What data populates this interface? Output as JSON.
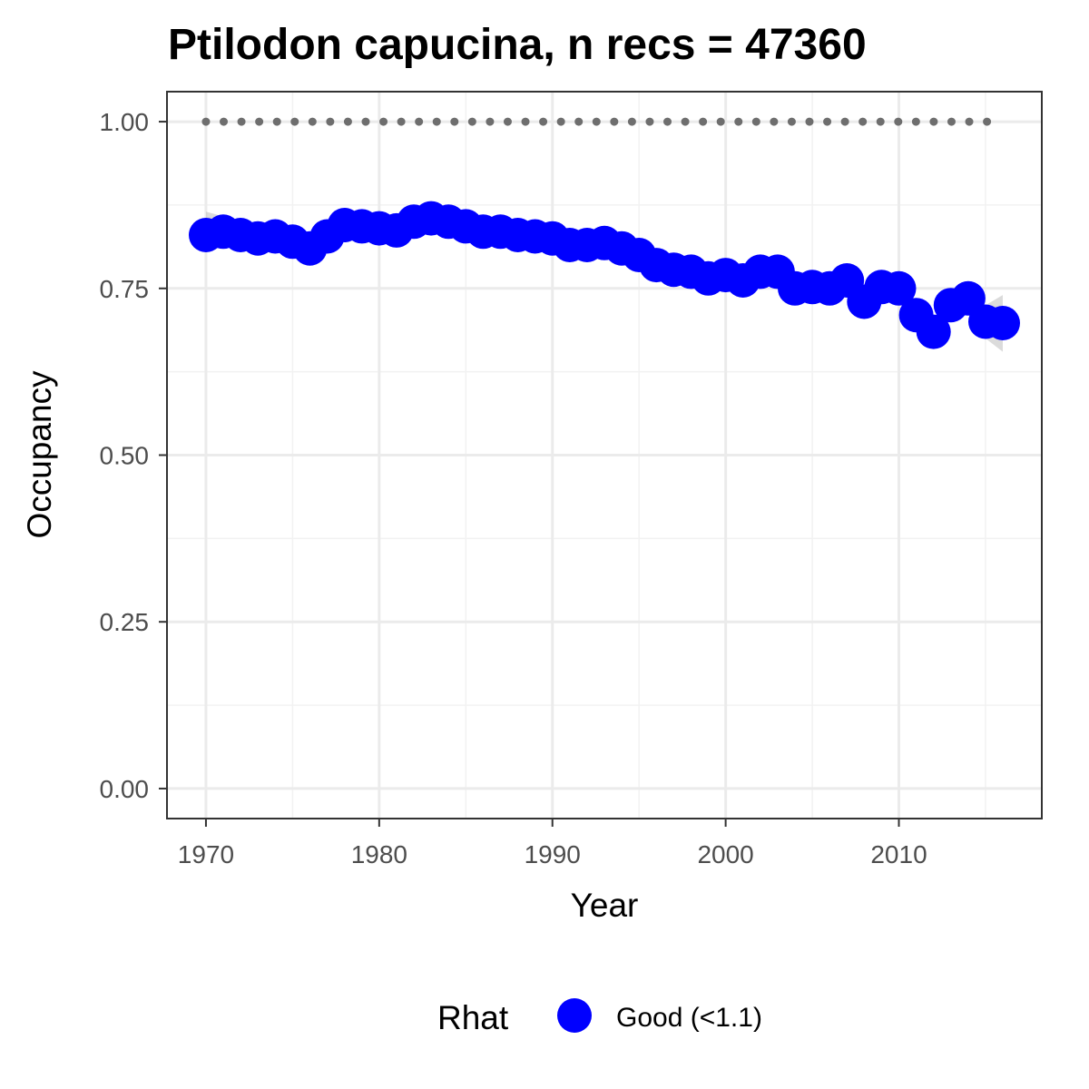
{
  "chart_data": {
    "type": "line",
    "title": "Ptilodon capucina, n recs = 47360",
    "xlabel": "Year",
    "ylabel": "Occupancy",
    "xlim": [
      1967.75,
      2018.25
    ],
    "ylim": [
      -0.045,
      1.045
    ],
    "x_ticks": [
      1970,
      1980,
      1990,
      2000,
      2010
    ],
    "x_tick_labels": [
      "1970",
      "1980",
      "1990",
      "2000",
      "2010"
    ],
    "y_ticks": [
      0,
      0.25,
      0.5,
      0.75,
      1.0
    ],
    "y_tick_labels": [
      "0.00",
      "0.25",
      "0.50",
      "0.75",
      "1.00"
    ],
    "grid": true,
    "legend": {
      "title": "Rhat",
      "position": "bottom",
      "entries": [
        {
          "label": "Good (<1.1)",
          "color": "#0000ff"
        }
      ]
    },
    "reference_line": {
      "y": 1.0,
      "style": "dotted",
      "color": "#6e6e6e"
    },
    "series": [
      {
        "name": "Good (<1.1)",
        "color": "#0000ff",
        "x": [
          1970,
          1971,
          1972,
          1973,
          1974,
          1975,
          1976,
          1977,
          1978,
          1979,
          1980,
          1981,
          1982,
          1983,
          1984,
          1985,
          1986,
          1987,
          1988,
          1989,
          1990,
          1991,
          1992,
          1993,
          1994,
          1995,
          1996,
          1997,
          1998,
          1999,
          2000,
          2001,
          2002,
          2003,
          2004,
          2005,
          2006,
          2007,
          2008,
          2009,
          2010,
          2011,
          2012,
          2013,
          2014,
          2015,
          2016
        ],
        "y": [
          0.83,
          0.835,
          0.83,
          0.825,
          0.828,
          0.82,
          0.81,
          0.828,
          0.845,
          0.843,
          0.84,
          0.837,
          0.85,
          0.855,
          0.85,
          0.843,
          0.835,
          0.835,
          0.83,
          0.828,
          0.825,
          0.815,
          0.815,
          0.818,
          0.81,
          0.8,
          0.785,
          0.778,
          0.775,
          0.765,
          0.77,
          0.762,
          0.775,
          0.775,
          0.75,
          0.752,
          0.75,
          0.762,
          0.73,
          0.752,
          0.75,
          0.71,
          0.685,
          0.725,
          0.735,
          0.7,
          0.698
        ],
        "ci_lower": [
          0.805,
          0.812,
          0.81,
          0.806,
          0.81,
          0.802,
          0.792,
          0.81,
          0.828,
          0.828,
          0.826,
          0.824,
          0.838,
          0.843,
          0.838,
          0.831,
          0.823,
          0.823,
          0.818,
          0.816,
          0.813,
          0.803,
          0.803,
          0.806,
          0.797,
          0.787,
          0.772,
          0.765,
          0.762,
          0.752,
          0.756,
          0.748,
          0.761,
          0.761,
          0.736,
          0.738,
          0.735,
          0.746,
          0.714,
          0.735,
          0.732,
          0.69,
          0.665,
          0.703,
          0.712,
          0.675,
          0.655
        ],
        "ci_upper": [
          0.865,
          0.858,
          0.85,
          0.844,
          0.846,
          0.838,
          0.828,
          0.846,
          0.862,
          0.858,
          0.854,
          0.85,
          0.862,
          0.867,
          0.862,
          0.855,
          0.847,
          0.847,
          0.842,
          0.84,
          0.837,
          0.827,
          0.827,
          0.83,
          0.823,
          0.813,
          0.798,
          0.791,
          0.788,
          0.778,
          0.784,
          0.776,
          0.789,
          0.789,
          0.764,
          0.766,
          0.765,
          0.778,
          0.746,
          0.769,
          0.768,
          0.73,
          0.705,
          0.747,
          0.758,
          0.725,
          0.74
        ]
      }
    ]
  }
}
